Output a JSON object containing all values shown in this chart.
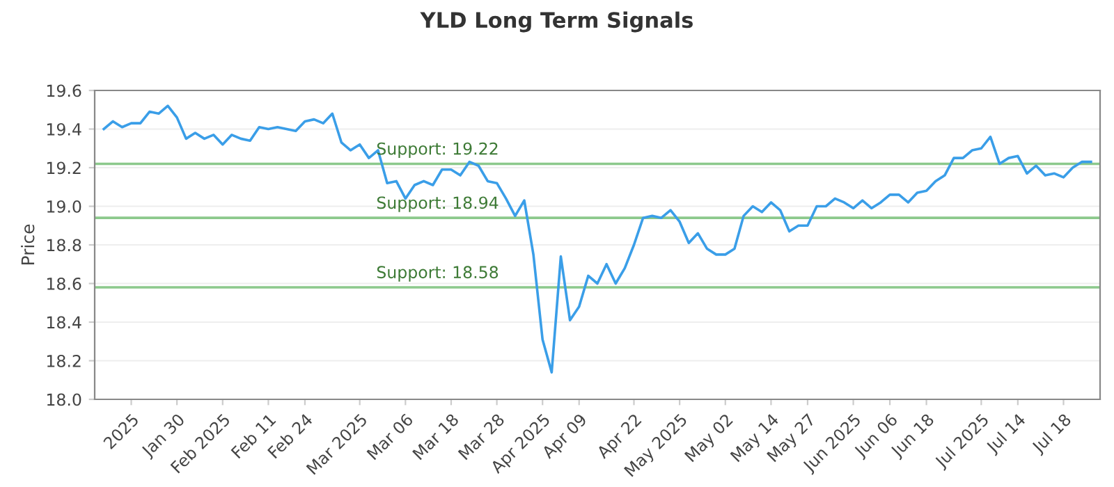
{
  "chart_data": {
    "type": "line",
    "title": "YLD Long Term Signals",
    "ylabel": "Price",
    "categories": [
      null,
      null,
      null,
      "2025",
      null,
      null,
      null,
      null,
      "Jan 30",
      null,
      null,
      null,
      null,
      "Feb 2025",
      null,
      null,
      null,
      null,
      "Feb 11",
      null,
      null,
      null,
      "Feb 24",
      null,
      null,
      null,
      null,
      null,
      "Mar 2025",
      null,
      null,
      null,
      null,
      "Mar 06",
      null,
      null,
      null,
      null,
      "Mar 18",
      null,
      null,
      null,
      null,
      "Mar 28",
      null,
      null,
      null,
      null,
      "Apr 2025",
      null,
      null,
      null,
      "Apr 09",
      null,
      null,
      null,
      null,
      null,
      "Apr 22",
      null,
      null,
      null,
      null,
      "May 2025",
      null,
      null,
      null,
      null,
      "May 02",
      null,
      null,
      null,
      null,
      "May 14",
      null,
      null,
      null,
      "May 27",
      null,
      null,
      null,
      null,
      "Jun 2025",
      null,
      null,
      null,
      "Jun 06",
      null,
      null,
      null,
      "Jun 18",
      null,
      null,
      null,
      null,
      null,
      "Jul 2025",
      null,
      null,
      null,
      "Jul 14",
      null,
      null,
      null,
      null,
      "Jul 18",
      null,
      null,
      null
    ],
    "series": [
      {
        "color": "#3a9ee8",
        "values": [
          19.4,
          19.44,
          19.41,
          19.43,
          19.43,
          19.49,
          19.48,
          19.52,
          19.46,
          19.35,
          19.38,
          19.35,
          19.37,
          19.32,
          19.37,
          19.35,
          19.34,
          19.41,
          19.4,
          19.41,
          19.4,
          19.39,
          19.44,
          19.45,
          19.43,
          19.48,
          19.33,
          19.29,
          19.32,
          19.25,
          19.29,
          19.12,
          19.13,
          19.04,
          19.11,
          19.13,
          19.11,
          19.19,
          19.19,
          19.16,
          19.23,
          19.21,
          19.13,
          19.12,
          19.04,
          18.95,
          19.03,
          18.75,
          18.31,
          18.14,
          18.74,
          18.41,
          18.48,
          18.64,
          18.6,
          18.7,
          18.6,
          18.68,
          18.8,
          18.94,
          18.95,
          18.94,
          18.98,
          18.92,
          18.81,
          18.86,
          18.78,
          18.75,
          18.75,
          18.78,
          18.95,
          19.0,
          18.97,
          19.02,
          18.98,
          18.87,
          18.9,
          18.9,
          19.0,
          19.0,
          19.04,
          19.02,
          18.99,
          19.03,
          18.99,
          19.02,
          19.06,
          19.06,
          19.02,
          19.07,
          19.08,
          19.13,
          19.16,
          19.25,
          19.25,
          19.29,
          19.3,
          19.36,
          19.22,
          19.25,
          19.26,
          19.17,
          19.21,
          19.16,
          19.17,
          19.15,
          19.2,
          19.23,
          19.23
        ]
      }
    ],
    "ylim": [
      18.0,
      19.6
    ],
    "yticks": [
      {
        "value": 18,
        "label": "18.0"
      },
      18.2,
      18.4,
      18.6,
      18.8,
      {
        "value": 19,
        "label": "19.0"
      },
      19.2,
      19.4,
      19.6
    ],
    "grid": "y",
    "ref_lines": [
      {
        "axis": "y",
        "value": 19.22,
        "label": "Support: 19.22",
        "color": "#8cc98c"
      },
      {
        "axis": "y",
        "value": 18.94,
        "label": "Support: 18.94",
        "color": "#8cc98c"
      },
      {
        "axis": "y",
        "value": 18.58,
        "label": "Support: 18.58",
        "color": "#8cc98c"
      }
    ]
  }
}
